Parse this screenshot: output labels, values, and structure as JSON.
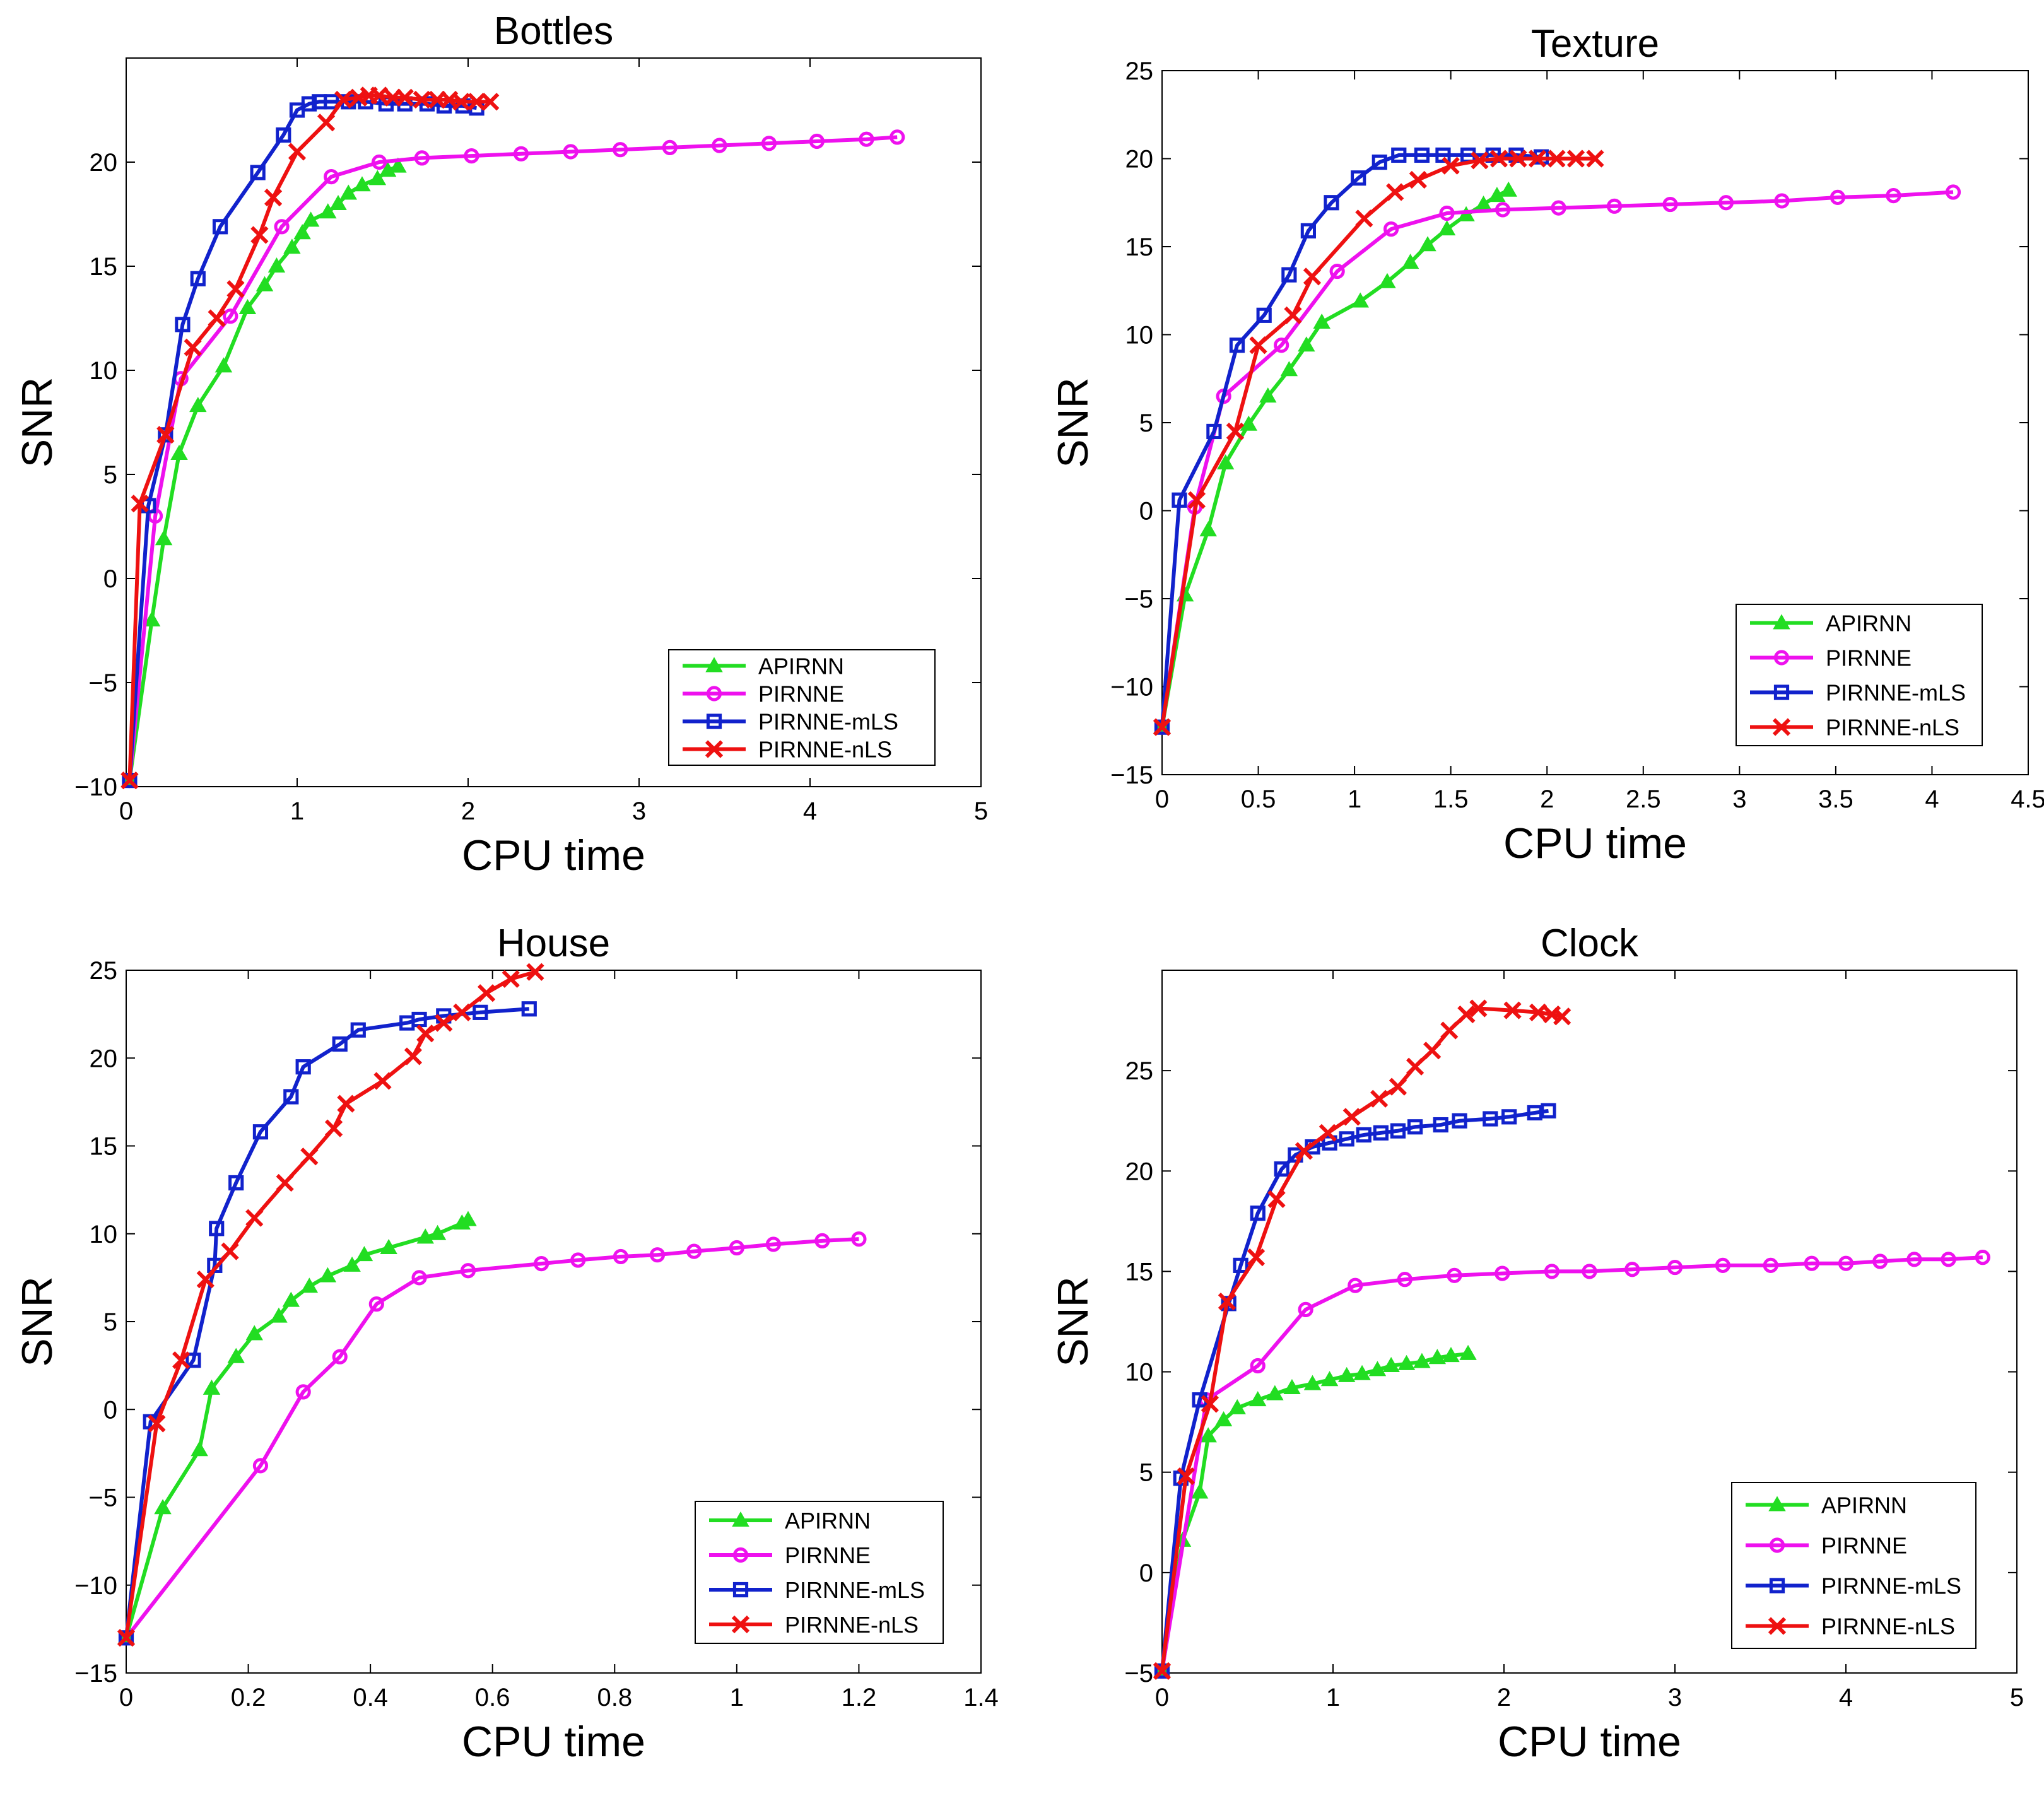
{
  "colors": {
    "APIRNN": "#22dd22",
    "PIRNNE": "#ee11ee",
    "PIRNNE-mLS": "#1122cc",
    "PIRNNE-nLS": "#ee1111",
    "axis": "#000000",
    "background": "#ffffff"
  },
  "chart_data": [
    {
      "type": "line",
      "title": "Bottles",
      "xlabel": "CPU time",
      "ylabel": "SNR",
      "xlim": [
        0,
        5
      ],
      "ylim": [
        -10,
        25
      ],
      "xticks": [
        0,
        1,
        2,
        3,
        4,
        5
      ],
      "xtick_labels": [
        "0",
        "1",
        "2",
        "3",
        "4",
        "5"
      ],
      "yticks": [
        -10,
        -5,
        0,
        5,
        10,
        15,
        20
      ],
      "ytick_labels": [
        "−10",
        "−5",
        "0",
        "5",
        "10",
        "15",
        "20"
      ],
      "grid": false,
      "legend_position": "bottom-right",
      "series": [
        {
          "name": "APIRNN",
          "marker": "triangle",
          "x": [
            0.02,
            0.15,
            0.22,
            0.31,
            0.42,
            0.57,
            0.71,
            0.81,
            0.88,
            0.97,
            1.03,
            1.08,
            1.18,
            1.24,
            1.3,
            1.38,
            1.47,
            1.53,
            1.59
          ],
          "y": [
            -9.7,
            -2.0,
            1.9,
            6.0,
            8.3,
            10.2,
            13.0,
            14.1,
            15.0,
            15.9,
            16.6,
            17.2,
            17.6,
            18.0,
            18.5,
            18.9,
            19.2,
            19.6,
            19.8
          ]
        },
        {
          "name": "PIRNNE",
          "marker": "circle",
          "x": [
            0.02,
            0.17,
            0.32,
            0.61,
            0.91,
            1.2,
            1.48,
            1.73,
            2.02,
            2.31,
            2.6,
            2.89,
            3.18,
            3.47,
            3.76,
            4.04,
            4.33,
            4.51
          ],
          "y": [
            -9.7,
            3.0,
            9.6,
            12.6,
            16.9,
            19.3,
            20.0,
            20.2,
            20.3,
            20.4,
            20.5,
            20.6,
            20.7,
            20.8,
            20.9,
            21.0,
            21.1,
            21.2
          ]
        },
        {
          "name": "PIRNNE-mLS",
          "marker": "square",
          "x": [
            0.02,
            0.13,
            0.23,
            0.33,
            0.42,
            0.55,
            0.77,
            0.92,
            1.0,
            1.07,
            1.13,
            1.2,
            1.3,
            1.4,
            1.52,
            1.63,
            1.76,
            1.86,
            1.97,
            2.05
          ],
          "y": [
            -9.7,
            3.5,
            6.9,
            12.2,
            14.4,
            16.9,
            19.5,
            21.3,
            22.5,
            22.8,
            22.9,
            22.9,
            22.9,
            22.9,
            22.8,
            22.8,
            22.8,
            22.7,
            22.7,
            22.6
          ]
        },
        {
          "name": "PIRNNE-nLS",
          "marker": "x",
          "x": [
            0.02,
            0.08,
            0.23,
            0.39,
            0.53,
            0.64,
            0.78,
            0.86,
            1.0,
            1.17,
            1.27,
            1.36,
            1.42,
            1.48,
            1.56,
            1.63,
            1.73,
            1.82,
            1.89,
            1.96,
            2.05,
            2.13
          ],
          "y": [
            -9.7,
            3.6,
            6.9,
            11.1,
            12.5,
            13.9,
            16.5,
            18.3,
            20.5,
            21.9,
            23.0,
            23.1,
            23.2,
            23.2,
            23.1,
            23.1,
            23.0,
            23.0,
            23.0,
            22.9,
            22.9,
            22.9
          ]
        }
      ]
    },
    {
      "type": "line",
      "title": "Texture",
      "xlabel": "CPU time",
      "ylabel": "SNR",
      "xlim": [
        0,
        4.5
      ],
      "ylim": [
        -15,
        25
      ],
      "xticks": [
        0,
        0.5,
        1,
        1.5,
        2,
        2.5,
        3,
        3.5,
        4,
        4.5
      ],
      "xtick_labels": [
        "0",
        "0.5",
        "1",
        "1.5",
        "2",
        "2.5",
        "3",
        "3.5",
        "4",
        "4.5"
      ],
      "yticks": [
        -15,
        -10,
        -5,
        0,
        5,
        10,
        15,
        20,
        25
      ],
      "ytick_labels": [
        "−15",
        "−10",
        "−5",
        "0",
        "5",
        "10",
        "15",
        "20",
        "25"
      ],
      "grid": false,
      "legend_position": "bottom-right",
      "series": [
        {
          "name": "APIRNN",
          "marker": "triangle",
          "x": [
            0.0,
            0.12,
            0.24,
            0.33,
            0.45,
            0.55,
            0.66,
            0.75,
            0.83,
            1.03,
            1.17,
            1.29,
            1.38,
            1.48,
            1.58,
            1.67,
            1.74,
            1.8
          ],
          "y": [
            -12.3,
            -4.8,
            -1.1,
            2.7,
            4.9,
            6.5,
            8.0,
            9.4,
            10.7,
            11.9,
            13.0,
            14.1,
            15.1,
            16.0,
            16.8,
            17.4,
            17.9,
            18.2
          ]
        },
        {
          "name": "PIRNNE",
          "marker": "circle",
          "x": [
            0.0,
            0.17,
            0.32,
            0.62,
            0.91,
            1.19,
            1.48,
            1.77,
            2.06,
            2.35,
            2.64,
            2.93,
            3.22,
            3.51,
            3.8,
            4.11
          ],
          "y": [
            -12.3,
            0.2,
            6.5,
            9.4,
            13.6,
            16.0,
            16.9,
            17.1,
            17.2,
            17.3,
            17.4,
            17.5,
            17.6,
            17.8,
            17.9,
            18.1
          ]
        },
        {
          "name": "PIRNNE-mLS",
          "marker": "square",
          "x": [
            0.0,
            0.09,
            0.27,
            0.39,
            0.53,
            0.66,
            0.76,
            0.88,
            1.02,
            1.13,
            1.23,
            1.35,
            1.46,
            1.59,
            1.72,
            1.84,
            1.97
          ],
          "y": [
            -12.3,
            0.6,
            4.5,
            9.4,
            11.1,
            13.4,
            15.9,
            17.5,
            18.9,
            19.8,
            20.2,
            20.2,
            20.2,
            20.2,
            20.2,
            20.2,
            20.1
          ]
        },
        {
          "name": "PIRNNE-nLS",
          "marker": "x",
          "x": [
            0.0,
            0.18,
            0.38,
            0.5,
            0.68,
            0.78,
            1.05,
            1.21,
            1.33,
            1.5,
            1.65,
            1.75,
            1.85,
            1.95,
            2.05,
            2.15,
            2.25
          ],
          "y": [
            -12.3,
            0.6,
            4.5,
            9.4,
            11.1,
            13.3,
            16.6,
            18.1,
            18.8,
            19.6,
            19.9,
            20.0,
            20.0,
            20.0,
            20.0,
            20.0,
            20.0
          ]
        }
      ]
    },
    {
      "type": "line",
      "title": "House",
      "xlabel": "CPU time",
      "ylabel": "SNR",
      "xlim": [
        0,
        1.4
      ],
      "ylim": [
        -15,
        25
      ],
      "xticks": [
        0,
        0.2,
        0.4,
        0.6,
        0.8,
        1,
        1.2,
        1.4
      ],
      "xtick_labels": [
        "0",
        "0.2",
        "0.4",
        "0.6",
        "0.8",
        "1",
        "1.2",
        "1.4"
      ],
      "yticks": [
        -15,
        -10,
        -5,
        0,
        5,
        10,
        15,
        20,
        25
      ],
      "ytick_labels": [
        "−15",
        "−10",
        "−5",
        "0",
        "5",
        "10",
        "15",
        "20",
        "25"
      ],
      "grid": false,
      "legend_position": "bottom-right",
      "series": [
        {
          "name": "APIRNN",
          "marker": "triangle",
          "x": [
            0.0,
            0.06,
            0.12,
            0.14,
            0.18,
            0.21,
            0.25,
            0.27,
            0.3,
            0.33,
            0.37,
            0.39,
            0.43,
            0.49,
            0.51,
            0.55,
            0.56
          ],
          "y": [
            -13.0,
            -5.6,
            -2.3,
            1.2,
            3.0,
            4.3,
            5.3,
            6.2,
            7.0,
            7.6,
            8.2,
            8.8,
            9.2,
            9.8,
            10.0,
            10.6,
            10.8
          ]
        },
        {
          "name": "PIRNNE",
          "marker": "circle",
          "x": [
            0.0,
            0.22,
            0.29,
            0.35,
            0.41,
            0.48,
            0.56,
            0.68,
            0.74,
            0.81,
            0.87,
            0.93,
            1.0,
            1.06,
            1.14,
            1.2
          ],
          "y": [
            -13.0,
            -3.2,
            1.0,
            3.0,
            6.0,
            7.5,
            7.9,
            8.3,
            8.5,
            8.7,
            8.8,
            9.0,
            9.2,
            9.4,
            9.6,
            9.7
          ]
        },
        {
          "name": "PIRNNE-mLS",
          "marker": "square",
          "x": [
            0.0,
            0.04,
            0.11,
            0.145,
            0.148,
            0.18,
            0.22,
            0.27,
            0.29,
            0.35,
            0.38,
            0.46,
            0.48,
            0.52,
            0.58,
            0.66
          ],
          "y": [
            -13.0,
            -0.7,
            2.8,
            8.2,
            10.3,
            12.9,
            15.8,
            17.8,
            19.5,
            20.8,
            21.6,
            22.0,
            22.2,
            22.4,
            22.6,
            22.8
          ]
        },
        {
          "name": "PIRNNE-nLS",
          "marker": "x",
          "x": [
            0.0,
            0.05,
            0.09,
            0.13,
            0.17,
            0.21,
            0.26,
            0.3,
            0.34,
            0.36,
            0.42,
            0.47,
            0.49,
            0.52,
            0.55,
            0.59,
            0.63,
            0.67
          ],
          "y": [
            -13.0,
            -0.8,
            2.8,
            7.4,
            9.0,
            10.9,
            12.9,
            14.4,
            16.0,
            17.4,
            18.7,
            20.1,
            21.4,
            22.0,
            22.6,
            23.7,
            24.5,
            24.9
          ]
        }
      ]
    },
    {
      "type": "line",
      "title": "Clock",
      "xlabel": "CPU time",
      "ylabel": "SNR",
      "xlim": [
        0,
        5
      ],
      "ylim": [
        -5,
        30
      ],
      "xticks": [
        0,
        1,
        2,
        3,
        4,
        5
      ],
      "xtick_labels": [
        "0",
        "1",
        "2",
        "3",
        "4",
        "5"
      ],
      "yticks": [
        -5,
        0,
        5,
        10,
        15,
        20,
        25
      ],
      "ytick_labels": [
        "−5",
        "0",
        "5",
        "10",
        "15",
        "20",
        "25"
      ],
      "grid": false,
      "legend_position": "bottom-right",
      "series": [
        {
          "name": "APIRNN",
          "marker": "triangle",
          "x": [
            0.0,
            0.12,
            0.22,
            0.27,
            0.36,
            0.44,
            0.56,
            0.66,
            0.76,
            0.88,
            0.98,
            1.08,
            1.17,
            1.26,
            1.34,
            1.43,
            1.52,
            1.61,
            1.69,
            1.79
          ],
          "y": [
            -4.9,
            1.6,
            4.0,
            6.8,
            7.6,
            8.2,
            8.6,
            8.9,
            9.2,
            9.4,
            9.6,
            9.8,
            9.9,
            10.1,
            10.3,
            10.4,
            10.5,
            10.7,
            10.8,
            10.9
          ]
        },
        {
          "name": "PIRNNE",
          "marker": "circle",
          "x": [
            0.0,
            0.26,
            0.56,
            0.84,
            1.13,
            1.42,
            1.71,
            1.99,
            2.28,
            2.5,
            2.75,
            3.0,
            3.28,
            3.56,
            3.8,
            4.0,
            4.2,
            4.4,
            4.6,
            4.8
          ],
          "y": [
            -4.9,
            8.6,
            10.3,
            13.1,
            14.3,
            14.6,
            14.8,
            14.9,
            15.0,
            15.0,
            15.1,
            15.2,
            15.3,
            15.3,
            15.4,
            15.4,
            15.5,
            15.6,
            15.6,
            15.7
          ]
        },
        {
          "name": "PIRNNE-mLS",
          "marker": "square",
          "x": [
            0.0,
            0.11,
            0.22,
            0.39,
            0.46,
            0.56,
            0.7,
            0.78,
            0.88,
            0.98,
            1.08,
            1.18,
            1.28,
            1.38,
            1.48,
            1.63,
            1.74,
            1.92,
            2.03,
            2.18,
            2.26
          ],
          "y": [
            -4.9,
            4.7,
            8.6,
            13.4,
            15.3,
            17.9,
            20.1,
            20.8,
            21.2,
            21.4,
            21.6,
            21.8,
            21.9,
            22.0,
            22.2,
            22.3,
            22.5,
            22.6,
            22.7,
            22.9,
            23.0
          ]
        },
        {
          "name": "PIRNNE-nLS",
          "marker": "x",
          "x": [
            0.0,
            0.14,
            0.28,
            0.38,
            0.55,
            0.67,
            0.83,
            0.97,
            1.11,
            1.27,
            1.38,
            1.48,
            1.58,
            1.68,
            1.78,
            1.85,
            2.05,
            2.2,
            2.28,
            2.34
          ],
          "y": [
            -4.9,
            4.8,
            8.4,
            13.5,
            15.7,
            18.6,
            21.0,
            21.9,
            22.7,
            23.6,
            24.2,
            25.2,
            26.0,
            27.0,
            27.8,
            28.1,
            28.0,
            27.9,
            27.8,
            27.7
          ]
        }
      ]
    }
  ]
}
